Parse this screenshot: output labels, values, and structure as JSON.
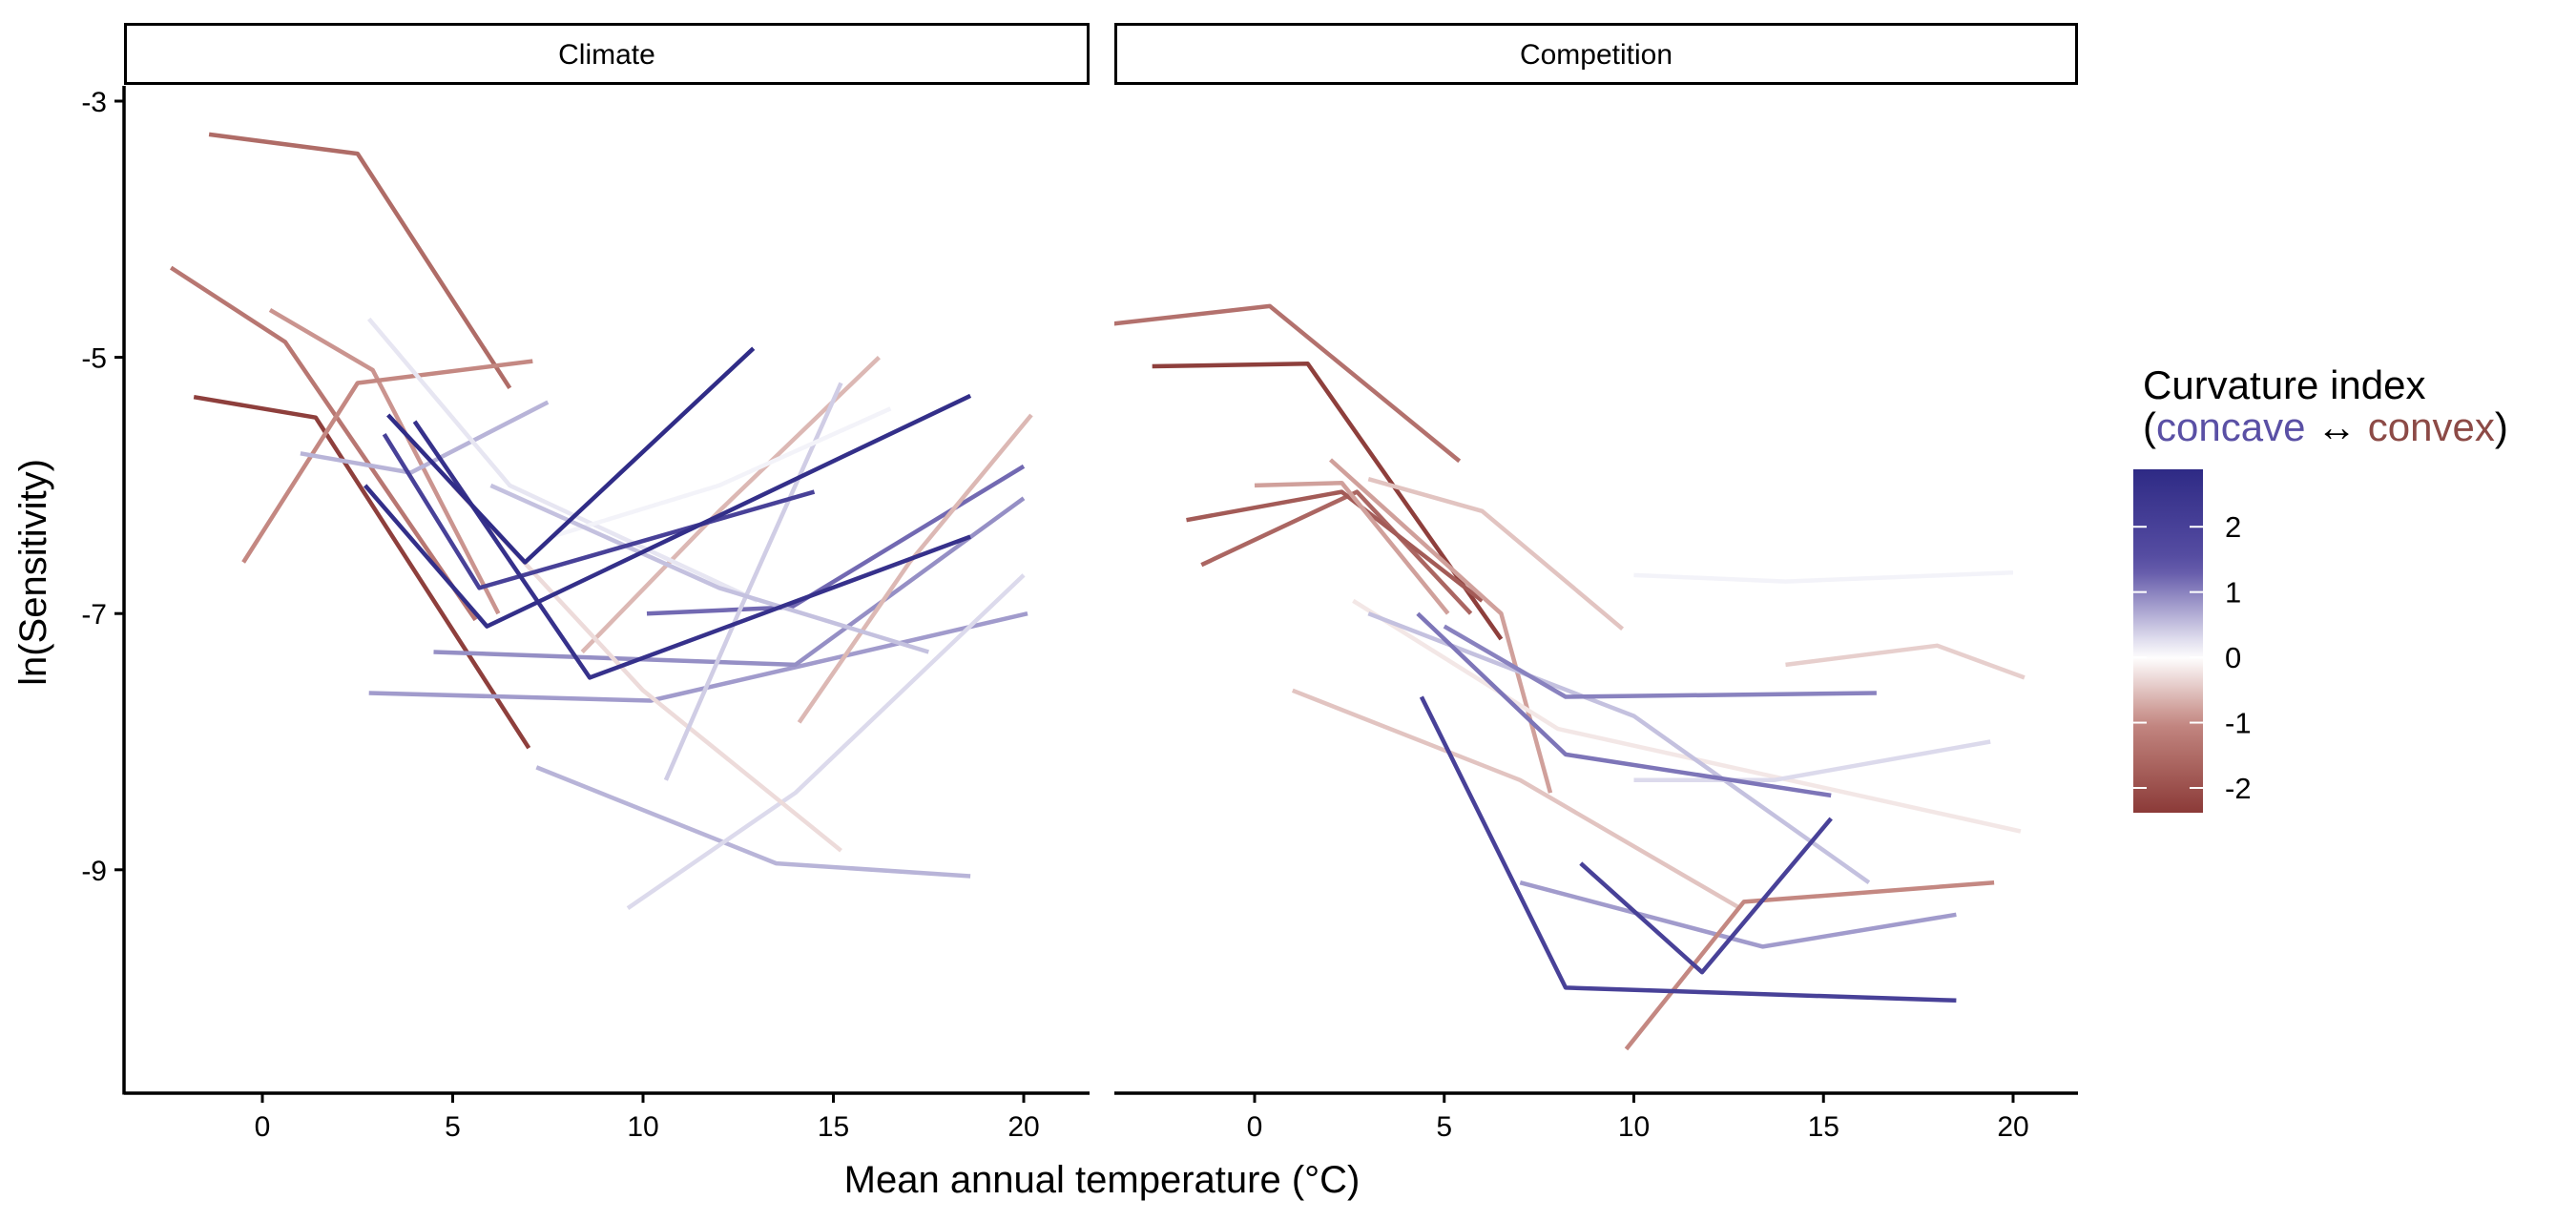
{
  "chart_data": {
    "type": "line",
    "xlabel": "Mean annual temperature (°C)",
    "ylabel": "ln(Sensitivity)",
    "xlim": [
      -3.6,
      21.7
    ],
    "ylim": [
      -10.75,
      -2.88
    ],
    "x_ticks": [
      "0",
      "5",
      "10",
      "15",
      "20"
    ],
    "x_tick_values": [
      0,
      5,
      10,
      15,
      20
    ],
    "y_ticks": [
      "-3",
      "-5",
      "-7",
      "-9"
    ],
    "y_tick_values": [
      -3,
      -5,
      -7,
      -9
    ],
    "grid": false,
    "legend": {
      "title_line1": "Curvature index",
      "open_paren": "(",
      "concave": "concave",
      "arrow": "↔",
      "convex": "convex",
      "close_paren": ")",
      "placement": "right",
      "ticks": [
        "2",
        "1",
        "0",
        "-1",
        "-2"
      ],
      "tick_values": [
        2,
        1,
        0,
        -1,
        -2
      ],
      "range": [
        -2.38,
        2.88
      ],
      "colors": {
        "high": "#2e2a85",
        "mid_high": "#5a50a5",
        "zero": "#ffffff",
        "mid_low": "#c48882",
        "low": "#8b3a38"
      },
      "concave_color": "#5a50a5",
      "convex_color": "#8c4a46"
    },
    "panels": [
      {
        "label": "Climate",
        "series": [
          {
            "curvature": -1.5,
            "x": [
              -1.4,
              2.5,
              6.5
            ],
            "y": [
              -3.26,
              -3.41,
              -5.24
            ]
          },
          {
            "curvature": -1.3,
            "x": [
              -2.4,
              0.6,
              5.6
            ],
            "y": [
              -4.3,
              -4.88,
              -7.05
            ]
          },
          {
            "curvature": -0.9,
            "x": [
              0.2,
              2.9,
              6.2
            ],
            "y": [
              -4.63,
              -5.1,
              -7.0
            ]
          },
          {
            "curvature": -2.3,
            "x": [
              -1.8,
              1.4,
              7.0
            ],
            "y": [
              -5.31,
              -5.47,
              -8.05
            ]
          },
          {
            "curvature": -1.0,
            "x": [
              -0.5,
              2.5,
              7.1
            ],
            "y": [
              -6.6,
              -5.2,
              -5.03
            ]
          },
          {
            "curvature": 0.6,
            "x": [
              1.0,
              3.9,
              7.5
            ],
            "y": [
              -5.75,
              -5.9,
              -5.35
            ]
          },
          {
            "curvature": 0.8,
            "x": [
              2.8,
              10.2,
              20.1
            ],
            "y": [
              -7.62,
              -7.68,
              -7.0
            ]
          },
          {
            "curvature": 0.6,
            "x": [
              7.2,
              13.5,
              18.6
            ],
            "y": [
              -8.2,
              -8.95,
              -9.05
            ]
          },
          {
            "curvature": 0.3,
            "x": [
              9.6,
              14.0,
              20.0
            ],
            "y": [
              -9.3,
              -8.4,
              -6.7
            ]
          },
          {
            "curvature": 1.2,
            "x": [
              10.1,
              13.9,
              20.0
            ],
            "y": [
              -7.0,
              -6.95,
              -5.85
            ]
          },
          {
            "curvature": 0.9,
            "x": [
              4.5,
              14.0,
              20.0
            ],
            "y": [
              -7.3,
              -7.4,
              -6.1
            ]
          },
          {
            "curvature": -0.6,
            "x": [
              8.4,
              12.0,
              16.2
            ],
            "y": [
              -7.3,
              -6.2,
              -5.0
            ]
          },
          {
            "curvature": -0.6,
            "x": [
              14.1,
              17.0,
              20.2
            ],
            "y": [
              -7.85,
              -6.6,
              -5.45
            ]
          },
          {
            "curvature": -0.3,
            "x": [
              5.0,
              10.0,
              15.2
            ],
            "y": [
              -6.0,
              -7.6,
              -8.85
            ]
          },
          {
            "curvature": 0.2,
            "x": [
              2.8,
              6.5,
              13.0
            ],
            "y": [
              -4.7,
              -6.0,
              -6.9
            ]
          },
          {
            "curvature": 0.4,
            "x": [
              10.6,
              12.5,
              15.2
            ],
            "y": [
              -8.3,
              -7.0,
              -5.2
            ]
          },
          {
            "curvature": 0.1,
            "x": [
              7.6,
              12.0,
              16.5
            ],
            "y": [
              -6.4,
              -6.0,
              -5.4
            ]
          },
          {
            "curvature": 0.5,
            "x": [
              6.0,
              12.0,
              17.5
            ],
            "y": [
              -6.0,
              -6.8,
              -7.3
            ]
          },
          {
            "curvature": 2.0,
            "x": [
              3.2,
              5.7,
              14.5
            ],
            "y": [
              -5.6,
              -6.8,
              -6.05
            ]
          },
          {
            "curvature": 2.6,
            "x": [
              4.0,
              8.6,
              18.6
            ],
            "y": [
              -5.5,
              -7.5,
              -6.4
            ]
          },
          {
            "curvature": 2.7,
            "x": [
              2.7,
              5.9,
              18.6
            ],
            "y": [
              -6.0,
              -7.1,
              -5.3
            ]
          },
          {
            "curvature": 2.8,
            "x": [
              3.3,
              6.9,
              12.9
            ],
            "y": [
              -5.45,
              -6.6,
              -4.93
            ]
          }
        ]
      },
      {
        "label": "Competition",
        "series": [
          {
            "curvature": -1.4,
            "x": [
              -3.8,
              0.4,
              5.4
            ],
            "y": [
              -4.74,
              -4.6,
              -5.81
            ]
          },
          {
            "curvature": -2.3,
            "x": [
              -2.7,
              1.4,
              6.5
            ],
            "y": [
              -5.07,
              -5.05,
              -7.2
            ]
          },
          {
            "curvature": -1.6,
            "x": [
              -1.4,
              2.7,
              5.7
            ],
            "y": [
              -6.62,
              -6.05,
              -7.0
            ]
          },
          {
            "curvature": -1.8,
            "x": [
              -1.8,
              2.3,
              6.0
            ],
            "y": [
              -6.27,
              -6.05,
              -6.9
            ]
          },
          {
            "curvature": -0.8,
            "x": [
              0.0,
              2.3,
              5.1
            ],
            "y": [
              -6.0,
              -5.98,
              -7.0
            ]
          },
          {
            "curvature": -0.5,
            "x": [
              3.0,
              6.0,
              9.7
            ],
            "y": [
              -5.95,
              -6.2,
              -7.12
            ]
          },
          {
            "curvature": -0.8,
            "x": [
              2.0,
              6.5,
              7.8
            ],
            "y": [
              -5.8,
              -7.0,
              -8.4
            ]
          },
          {
            "curvature": 0.1,
            "x": [
              10.0,
              14.0,
              20.0
            ],
            "y": [
              -6.7,
              -6.75,
              -6.68
            ]
          },
          {
            "curvature": -0.4,
            "x": [
              14.0,
              18.0,
              20.3
            ],
            "y": [
              -7.4,
              -7.25,
              -7.5
            ]
          },
          {
            "curvature": -0.2,
            "x": [
              2.6,
              8.0,
              20.2
            ],
            "y": [
              -6.9,
              -7.9,
              -8.7
            ]
          },
          {
            "curvature": 0.5,
            "x": [
              3.0,
              10.0,
              16.2
            ],
            "y": [
              -7.0,
              -7.8,
              -9.1
            ]
          },
          {
            "curvature": 0.3,
            "x": [
              10.0,
              13.7,
              19.4
            ],
            "y": [
              -8.3,
              -8.3,
              -8.0
            ]
          },
          {
            "curvature": -0.5,
            "x": [
              1.0,
              7.0,
              12.8
            ],
            "y": [
              -7.6,
              -8.3,
              -9.3
            ]
          },
          {
            "curvature": 1.0,
            "x": [
              5.0,
              8.2,
              16.4
            ],
            "y": [
              -7.1,
              -7.65,
              -7.62
            ]
          },
          {
            "curvature": 1.1,
            "x": [
              4.3,
              8.2,
              15.2
            ],
            "y": [
              -7.0,
              -8.1,
              -8.42
            ]
          },
          {
            "curvature": 0.8,
            "x": [
              7.0,
              13.4,
              18.5
            ],
            "y": [
              -9.1,
              -9.6,
              -9.35
            ]
          },
          {
            "curvature": -1.0,
            "x": [
              9.8,
              12.9,
              19.5
            ],
            "y": [
              -10.4,
              -9.25,
              -9.1
            ]
          },
          {
            "curvature": 2.0,
            "x": [
              8.6,
              11.8,
              15.2
            ],
            "y": [
              -8.95,
              -9.8,
              -8.6
            ]
          },
          {
            "curvature": 2.0,
            "x": [
              4.4,
              8.2,
              18.5
            ],
            "y": [
              -7.65,
              -9.92,
              -10.02
            ]
          }
        ]
      }
    ]
  }
}
